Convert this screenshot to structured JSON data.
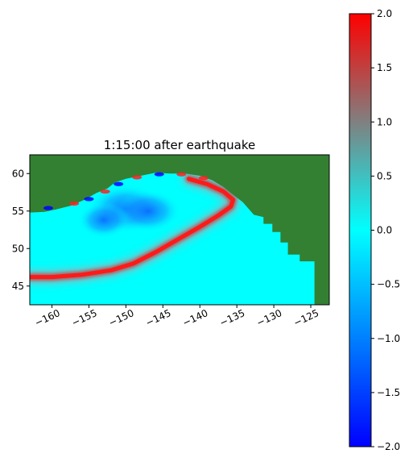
{
  "chart_data": {
    "type": "heatmap",
    "title": "1:15:00 after earthquake",
    "xlabel": "",
    "ylabel": "",
    "xlim": [
      -163,
      -122.5
    ],
    "ylim": [
      42.5,
      62.5
    ],
    "x_ticks": [
      -160,
      -155,
      -150,
      -145,
      -140,
      -135,
      -130,
      -125
    ],
    "x_tick_labels": [
      "−160",
      "−155",
      "−150",
      "−145",
      "−140",
      "−135",
      "−130",
      "−125"
    ],
    "y_ticks": [
      45,
      50,
      55,
      60
    ],
    "y_tick_labels": [
      "45",
      "50",
      "55",
      "60"
    ],
    "x_tick_rotation_deg": 25,
    "colorbar": {
      "vmin": -2.0,
      "vmax": 2.0,
      "ticks": [
        -2.0,
        -1.5,
        -1.0,
        -0.5,
        0.0,
        0.5,
        1.0,
        1.5,
        2.0
      ],
      "tick_labels": [
        "−2.0",
        "−1.5",
        "−1.0",
        "−0.5",
        "0.0",
        "0.5",
        "1.0",
        "1.5",
        "2.0"
      ],
      "colormap_stops": [
        {
          "value": -2.0,
          "color": "#0000ff"
        },
        {
          "value": -1.0,
          "color": "#0080ff"
        },
        {
          "value": 0.0,
          "color": "#00ffff"
        },
        {
          "value": 1.0,
          "color": "#808080"
        },
        {
          "value": 2.0,
          "color": "#ff0000"
        }
      ]
    },
    "land_color": "#338033",
    "land_polygon_lonlat": [
      [
        -163,
        62.5
      ],
      [
        -122.5,
        62.5
      ],
      [
        -122.5,
        42.5
      ],
      [
        -124.5,
        42.5
      ],
      [
        -124.5,
        48.3
      ],
      [
        -126.5,
        48.3
      ],
      [
        -126.5,
        49.2
      ],
      [
        -128.1,
        49.2
      ],
      [
        -128.1,
        50.8
      ],
      [
        -129.1,
        50.8
      ],
      [
        -129.1,
        52.2
      ],
      [
        -130.2,
        52.2
      ],
      [
        -130.2,
        53.3
      ],
      [
        -131.4,
        53.3
      ],
      [
        -131.4,
        54.2
      ],
      [
        -132.7,
        54.5
      ],
      [
        -134.2,
        56.2
      ],
      [
        -135.8,
        57.4
      ],
      [
        -136.8,
        58.2
      ],
      [
        -138.3,
        59.1
      ],
      [
        -140.0,
        59.7
      ],
      [
        -142.0,
        60.0
      ],
      [
        -144.0,
        60.0
      ],
      [
        -146.0,
        60.1
      ],
      [
        -148.0,
        59.7
      ],
      [
        -150.0,
        59.3
      ],
      [
        -151.5,
        58.8
      ],
      [
        -152.5,
        58.0
      ],
      [
        -154.0,
        57.4
      ],
      [
        -155.6,
        56.5
      ],
      [
        -157.5,
        55.7
      ],
      [
        -159.5,
        55.2
      ],
      [
        -161.0,
        54.9
      ],
      [
        -163,
        54.8
      ]
    ],
    "wave_front_lonlat": [
      [
        -163,
        46.2
      ],
      [
        -160,
        46.2
      ],
      [
        -156,
        46.5
      ],
      [
        -152,
        47.1
      ],
      [
        -149,
        48.0
      ],
      [
        -146,
        49.5
      ],
      [
        -143,
        51.2
      ],
      [
        -140,
        52.9
      ],
      [
        -137.5,
        54.4
      ],
      [
        -135.8,
        55.6
      ],
      [
        -135.5,
        56.5
      ],
      [
        -136.8,
        57.6
      ],
      [
        -139.0,
        58.6
      ],
      [
        -141.5,
        59.3
      ]
    ],
    "negative_anomaly_lonlat": [
      [
        -150,
        55.3
      ],
      [
        -147,
        55.0
      ],
      [
        -153,
        53.8
      ]
    ]
  }
}
